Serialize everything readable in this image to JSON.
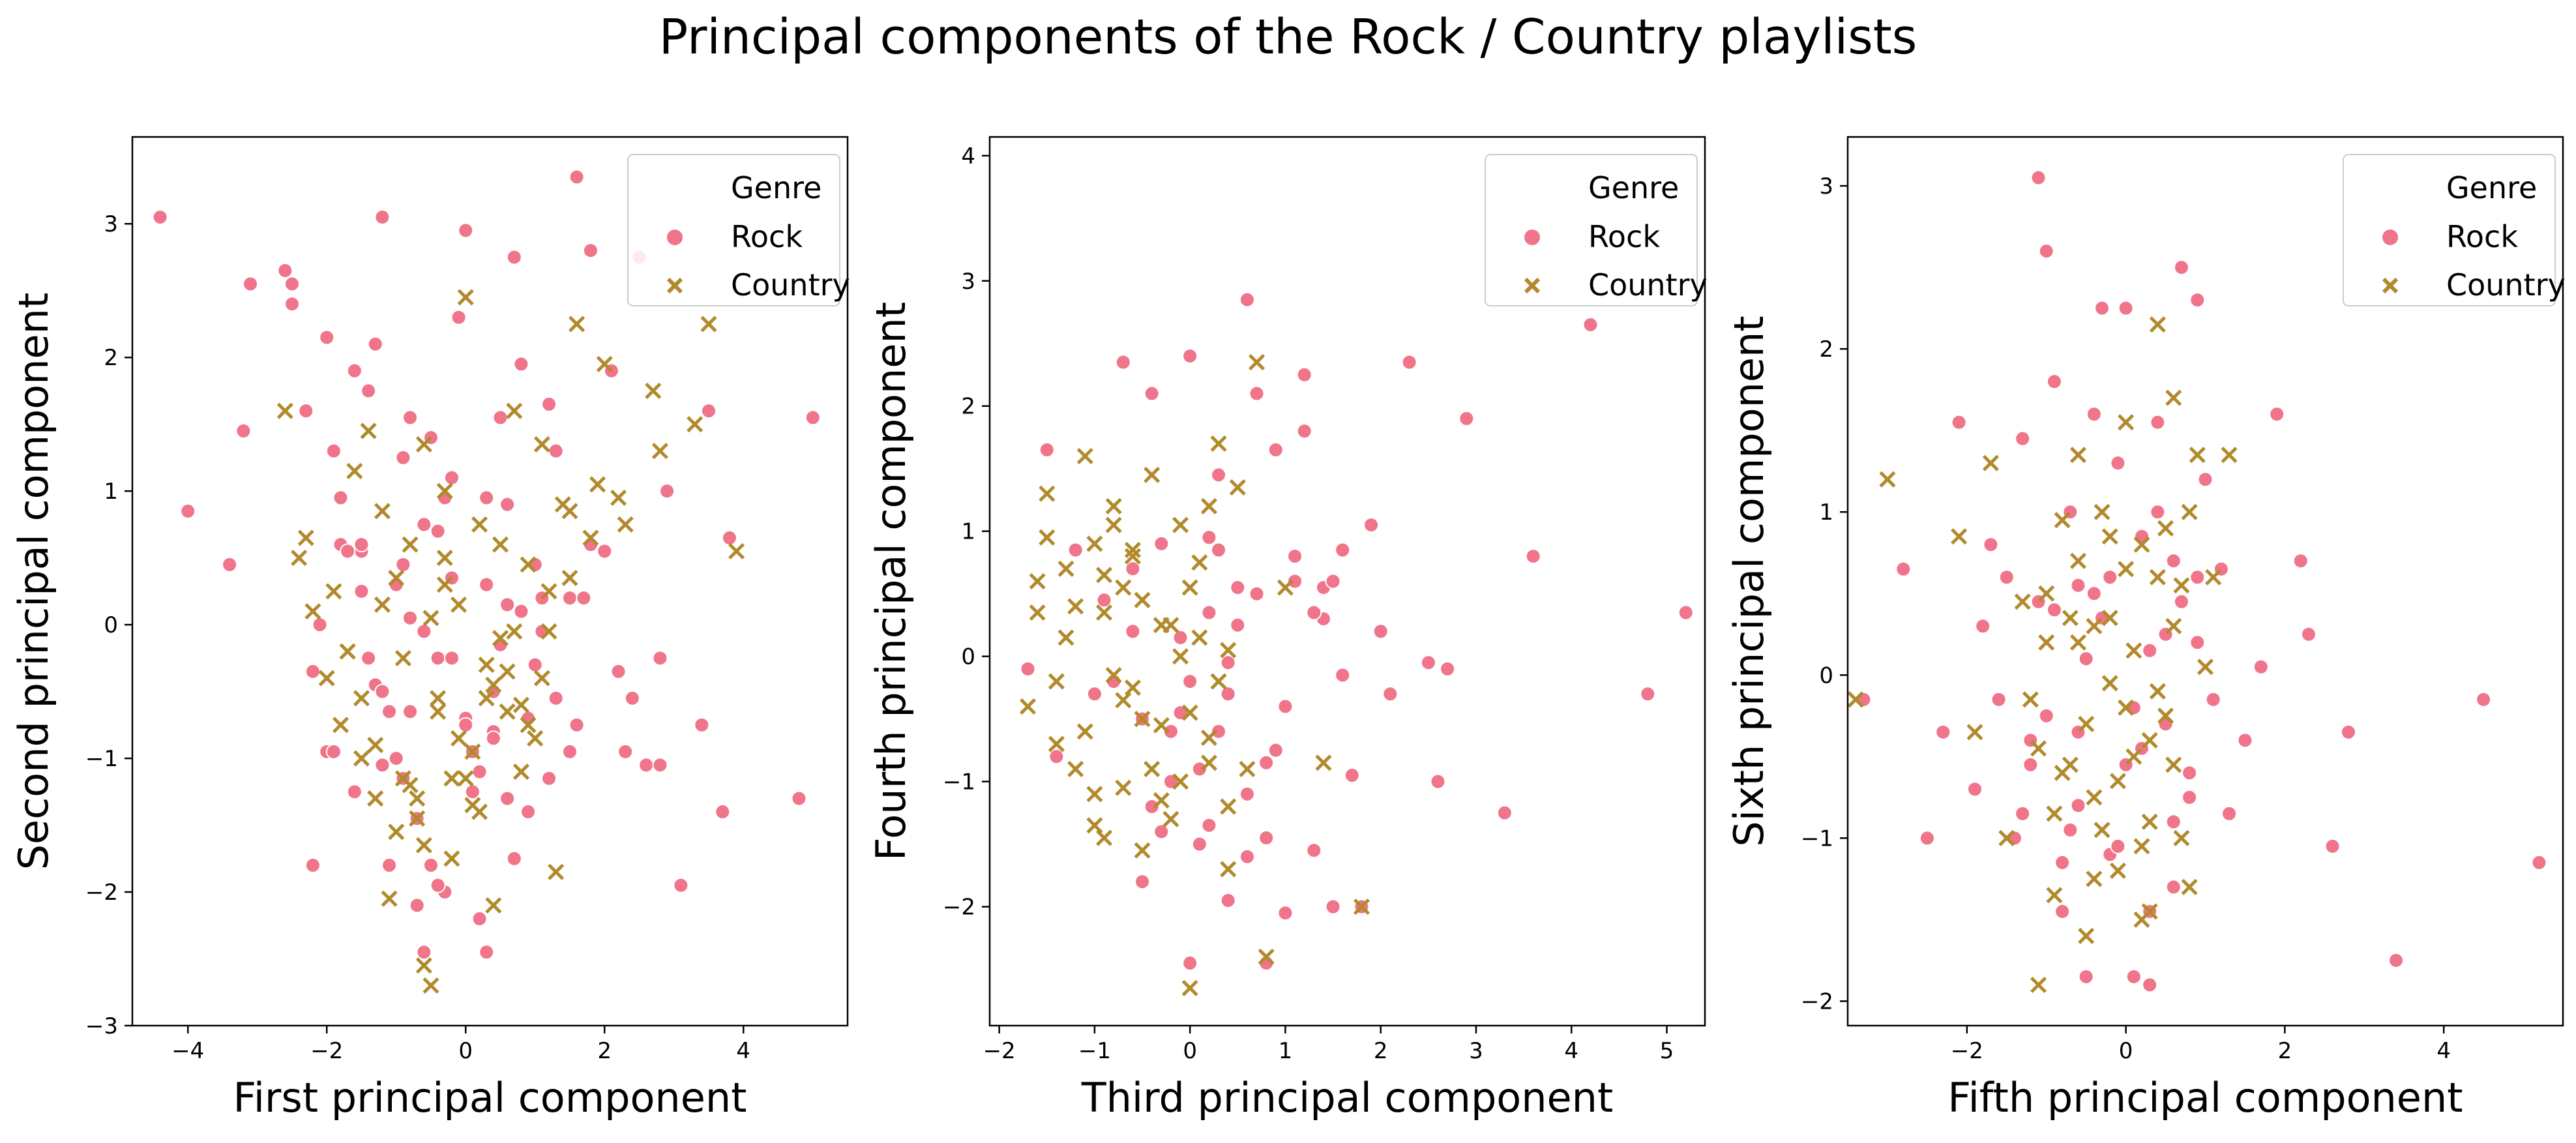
{
  "figure": {
    "title": "Principal components of the Rock / Country playlists"
  },
  "legend": {
    "title": "Genre",
    "items": [
      {
        "label": "Rock",
        "marker": "circle",
        "color": "#F0748A"
      },
      {
        "label": "Country",
        "marker": "x",
        "color": "#B18A2C"
      }
    ],
    "placement": "upper-right"
  },
  "chart_data": [
    {
      "type": "scatter",
      "xlabel": "First principal component",
      "ylabel": "Second principal component",
      "xlim": [
        -4.8,
        5.5
      ],
      "ylim": [
        -3.0,
        3.65
      ],
      "xticks": [
        -4,
        -2,
        0,
        2,
        4
      ],
      "yticks": [
        -3,
        -2,
        -1,
        0,
        1,
        2,
        3
      ],
      "grid": false,
      "series": [
        {
          "name": "Rock",
          "marker": "circle",
          "color": "#F0748A",
          "x": [
            -4.4,
            -4.0,
            -3.4,
            -3.2,
            -3.1,
            -2.6,
            -2.5,
            -2.5,
            -2.3,
            -2.2,
            -2.1,
            -2.0,
            -1.9,
            -1.8,
            -1.6,
            -1.5,
            -1.4,
            -1.3,
            -1.2,
            -1.1,
            -1.0,
            -0.9,
            -0.8,
            -0.7,
            -0.6,
            -0.5,
            -0.4,
            -0.3,
            -0.2,
            -0.1,
            0.0,
            0.1,
            0.2,
            0.3,
            0.4,
            0.5,
            0.6,
            0.7,
            0.8,
            0.9,
            1.0,
            1.1,
            1.2,
            1.3,
            1.5,
            1.6,
            1.8,
            2.0,
            2.1,
            2.3,
            2.5,
            2.8,
            3.1,
            3.4,
            3.5,
            3.7,
            3.8,
            4.8,
            5.0,
            -1.8,
            -1.5,
            -1.3,
            -0.9,
            -0.6,
            -0.4,
            -0.2,
            0.1,
            0.3,
            0.6,
            0.9,
            1.3,
            1.7,
            2.2,
            2.6,
            -2.0,
            -1.7,
            -1.4,
            -1.0,
            -0.7,
            -0.3,
            0.0,
            0.4,
            0.8,
            1.2,
            1.8,
            2.4,
            -2.2,
            -1.6,
            -1.2,
            -0.8,
            -0.5,
            0.2,
            0.5,
            1.0,
            1.5,
            -1.1,
            -0.6,
            0.0,
            0.6,
            -0.4,
            0.3,
            2.8,
            1.6,
            -1.9,
            -1.2,
            -0.9,
            -0.2,
            0.7,
            1.1,
            -1.5,
            -0.8,
            0.4,
            2.9
          ],
          "y": [
            3.05,
            0.85,
            0.45,
            1.45,
            2.55,
            2.65,
            2.4,
            2.55,
            1.6,
            -1.8,
            0.0,
            2.15,
            1.3,
            0.6,
            1.9,
            0.55,
            1.75,
            2.1,
            3.05,
            -1.8,
            -1.0,
            1.25,
            1.55,
            -2.1,
            -2.45,
            1.4,
            0.7,
            -2.0,
            1.1,
            2.3,
            2.95,
            -1.25,
            -2.2,
            0.3,
            -0.8,
            1.55,
            0.9,
            2.75,
            1.95,
            -1.4,
            -0.3,
            -0.05,
            1.65,
            1.3,
            0.2,
            3.35,
            2.8,
            0.55,
            1.9,
            -0.95,
            2.75,
            -0.25,
            -1.95,
            -0.75,
            1.6,
            -1.4,
            0.65,
            -1.3,
            1.55,
            0.95,
            0.25,
            -0.45,
            0.45,
            0.75,
            -0.25,
            0.35,
            -0.95,
            0.95,
            0.15,
            -0.7,
            -0.55,
            0.2,
            -0.35,
            -1.05,
            -0.95,
            0.55,
            -0.25,
            0.3,
            -1.45,
            0.95,
            -0.7,
            -0.5,
            0.1,
            -1.15,
            0.6,
            -0.55,
            -0.35,
            -1.25,
            -1.05,
            -0.65,
            -1.8,
            -1.1,
            -0.15,
            0.45,
            -0.95,
            -0.65,
            -0.05,
            -0.75,
            -1.3,
            -1.95,
            -2.45,
            -1.05,
            -0.75,
            -0.95,
            -0.5,
            -1.15,
            -0.25,
            -1.75,
            0.2,
            0.6,
            0.05,
            -0.85,
            1.0
          ]
        },
        {
          "name": "Country",
          "marker": "x",
          "color": "#B18A2C",
          "x": [
            -2.6,
            -2.4,
            -2.3,
            -2.2,
            -2.0,
            -1.9,
            -1.8,
            -1.7,
            -1.6,
            -1.5,
            -1.4,
            -1.3,
            -1.2,
            -1.1,
            -1.0,
            -0.9,
            -0.8,
            -0.7,
            -0.6,
            -0.5,
            -0.4,
            -0.3,
            -0.2,
            -0.1,
            0.0,
            0.1,
            0.2,
            0.3,
            0.4,
            0.5,
            0.6,
            0.7,
            0.8,
            0.9,
            1.0,
            1.1,
            1.2,
            1.3,
            1.4,
            1.5,
            1.6,
            1.8,
            2.0,
            2.2,
            2.3,
            2.7,
            2.8,
            3.3,
            3.5,
            3.9,
            -1.5,
            -1.2,
            -0.9,
            -0.6,
            -0.3,
            0.0,
            0.3,
            0.6,
            0.9,
            1.2,
            -1.0,
            -0.7,
            -0.4,
            -0.1,
            0.2,
            0.5,
            0.8,
            -1.3,
            -0.8,
            -0.5,
            0.1,
            0.4,
            1.5,
            1.9,
            -0.6,
            -0.2,
            0.7,
            1.1,
            -1.7,
            -0.3
          ],
          "y": [
            1.6,
            0.5,
            0.65,
            0.1,
            -0.4,
            0.25,
            -0.75,
            -0.2,
            1.15,
            -1.0,
            1.45,
            -1.3,
            0.85,
            -2.05,
            0.35,
            -1.15,
            0.6,
            -1.45,
            1.35,
            -2.7,
            -0.55,
            1.0,
            -1.75,
            0.15,
            2.45,
            -0.95,
            0.75,
            -0.3,
            -2.1,
            0.6,
            -0.65,
            1.6,
            -1.1,
            0.45,
            -0.85,
            1.35,
            0.25,
            -1.85,
            0.9,
            0.35,
            2.25,
            0.65,
            1.95,
            0.95,
            0.75,
            1.75,
            1.3,
            1.5,
            2.25,
            0.55,
            -0.55,
            0.15,
            -0.25,
            -1.65,
            0.5,
            -1.15,
            -0.55,
            -0.35,
            -0.75,
            -0.05,
            -1.55,
            -1.3,
            -0.65,
            -0.85,
            -1.4,
            -0.1,
            -0.6,
            -0.9,
            -1.2,
            0.05,
            -1.35,
            -0.45,
            0.85,
            1.05,
            -2.55,
            -1.15,
            -0.05,
            -0.4,
            -0.2,
            0.3
          ]
        }
      ]
    },
    {
      "type": "scatter",
      "xlabel": "Third principal component",
      "ylabel": "Fourth principal component",
      "xlim": [
        -2.1,
        5.4
      ],
      "ylim": [
        -2.95,
        4.15
      ],
      "xticks": [
        -2,
        -1,
        0,
        1,
        2,
        3,
        4,
        5
      ],
      "yticks": [
        -2,
        -1,
        0,
        1,
        2,
        3,
        4
      ],
      "grid": false,
      "series": [
        {
          "name": "Rock",
          "marker": "circle",
          "color": "#F0748A",
          "x": [
            -1.7,
            -1.5,
            -1.4,
            -1.2,
            -1.0,
            -0.9,
            -0.7,
            -0.6,
            -0.5,
            -0.4,
            -0.3,
            -0.2,
            -0.1,
            0.0,
            0.1,
            0.2,
            0.3,
            0.4,
            0.5,
            0.6,
            0.7,
            0.8,
            0.9,
            1.0,
            1.1,
            1.2,
            1.3,
            1.4,
            1.5,
            1.6,
            1.7,
            1.8,
            1.9,
            2.0,
            2.1,
            2.3,
            2.5,
            2.6,
            2.7,
            2.9,
            3.3,
            3.6,
            4.2,
            4.8,
            5.2,
            -0.3,
            0.0,
            0.6,
            1.2,
            -0.5,
            0.2,
            0.8,
            1.4,
            -0.8,
            0.4,
            1.0,
            1.6,
            0.1,
            0.7,
            -0.2,
            0.5,
            1.1,
            0.3,
            0.9,
            -0.6,
            0.6,
            1.3,
            0.0,
            -0.4,
            0.2,
            0.8,
            0.4,
            -0.1,
            1.5,
            0.3
          ],
          "y": [
            -0.1,
            1.65,
            -0.8,
            0.85,
            -0.3,
            0.45,
            2.35,
            0.2,
            -1.8,
            2.1,
            0.9,
            -0.6,
            0.15,
            2.4,
            -0.9,
            -1.35,
            1.45,
            -1.95,
            0.55,
            -1.1,
            2.1,
            -1.45,
            1.65,
            -2.05,
            0.6,
            2.25,
            -1.55,
            0.3,
            -2.0,
            0.85,
            -0.95,
            -2.0,
            1.05,
            0.2,
            -0.3,
            2.35,
            -0.05,
            -1.0,
            -0.1,
            1.9,
            -1.25,
            0.8,
            2.65,
            -0.3,
            0.35,
            -1.4,
            -2.45,
            2.85,
            1.8,
            -0.5,
            0.95,
            -0.85,
            0.55,
            -0.2,
            -0.3,
            -0.4,
            -0.15,
            -1.5,
            0.5,
            -1.0,
            0.25,
            0.8,
            -0.6,
            -0.75,
            0.7,
            -1.6,
            0.35,
            -0.2,
            -1.2,
            0.35,
            -2.45,
            -0.05,
            -0.45,
            0.6,
            0.85
          ]
        },
        {
          "name": "Country",
          "marker": "x",
          "color": "#B18A2C",
          "x": [
            -1.7,
            -1.6,
            -1.5,
            -1.4,
            -1.3,
            -1.2,
            -1.1,
            -1.0,
            -0.9,
            -0.8,
            -0.7,
            -0.6,
            -0.5,
            -0.4,
            -0.3,
            -0.2,
            -0.1,
            0.0,
            0.1,
            0.2,
            0.3,
            0.4,
            0.5,
            0.6,
            0.7,
            0.8,
            1.0,
            1.4,
            1.8,
            -1.6,
            -1.3,
            -1.1,
            -0.9,
            -0.7,
            -0.5,
            -0.3,
            -0.1,
            0.1,
            0.3,
            -1.4,
            -1.2,
            -1.0,
            -0.8,
            -0.6,
            -0.4,
            -0.2,
            0.0,
            0.2,
            -1.5,
            -0.9,
            -0.7,
            -0.3,
            0.4,
            -1.0,
            -0.5,
            -0.1,
            0.2,
            -0.8,
            -0.6,
            0.0,
            0.4
          ],
          "y": [
            -0.4,
            0.6,
            1.3,
            -0.2,
            0.7,
            -0.9,
            1.6,
            -1.35,
            0.35,
            1.2,
            -1.05,
            0.85,
            -1.55,
            1.45,
            0.25,
            -1.3,
            1.05,
            -2.65,
            0.15,
            -0.85,
            1.7,
            -1.7,
            1.35,
            -0.9,
            2.35,
            -2.4,
            0.55,
            -0.85,
            -2.0,
            0.35,
            0.15,
            -0.6,
            0.65,
            -0.35,
            0.45,
            -0.55,
            0.0,
            0.75,
            -0.2,
            -0.7,
            0.4,
            -1.1,
            -0.15,
            0.8,
            -0.9,
            0.25,
            -0.45,
            1.2,
            0.95,
            -1.45,
            0.55,
            -1.15,
            0.05,
            0.9,
            -0.5,
            -1.0,
            -0.65,
            1.05,
            -0.25,
            0.55,
            -1.2
          ]
        }
      ]
    },
    {
      "type": "scatter",
      "xlabel": "Fifth principal component",
      "ylabel": "Sixth principal component",
      "xlim": [
        -3.5,
        5.5
      ],
      "ylim": [
        -2.15,
        3.3
      ],
      "xticks": [
        -2,
        0,
        2,
        4
      ],
      "yticks": [
        -2,
        -1,
        0,
        1,
        2,
        3
      ],
      "grid": false,
      "series": [
        {
          "name": "Rock",
          "marker": "circle",
          "color": "#F0748A",
          "x": [
            -3.3,
            -2.8,
            -2.5,
            -2.3,
            -2.1,
            -1.9,
            -1.7,
            -1.5,
            -1.4,
            -1.3,
            -1.2,
            -1.1,
            -1.0,
            -0.9,
            -0.8,
            -0.7,
            -0.6,
            -0.5,
            -0.4,
            -0.3,
            -0.2,
            -0.1,
            0.0,
            0.1,
            0.2,
            0.3,
            0.4,
            0.5,
            0.6,
            0.7,
            0.8,
            0.9,
            1.0,
            1.1,
            1.3,
            1.5,
            1.7,
            1.9,
            2.2,
            2.3,
            2.6,
            2.8,
            3.4,
            4.5,
            5.2,
            -1.8,
            -1.6,
            -1.2,
            -0.9,
            -0.6,
            -0.3,
            0.0,
            0.3,
            0.6,
            0.9,
            -1.0,
            -0.7,
            -0.4,
            0.2,
            0.5,
            0.8,
            -1.3,
            -0.5,
            0.1,
            0.4,
            0.7,
            -0.8,
            -0.2,
            0.3,
            1.2,
            -1.1,
            0.6,
            -0.6,
            0.9,
            -0.1
          ],
          "y": [
            -0.15,
            0.65,
            -1.0,
            -0.35,
            1.55,
            -0.7,
            0.8,
            0.6,
            -1.0,
            1.45,
            -0.4,
            3.05,
            2.6,
            1.8,
            -1.45,
            1.0,
            0.55,
            -1.85,
            1.6,
            2.25,
            -1.1,
            1.3,
            2.25,
            -1.85,
            0.85,
            -1.9,
            1.55,
            -0.3,
            0.7,
            2.5,
            -0.6,
            2.3,
            1.2,
            -0.15,
            -0.85,
            -0.4,
            0.05,
            1.6,
            0.7,
            0.25,
            -1.05,
            -0.35,
            -1.75,
            -0.15,
            -1.15,
            0.3,
            -0.15,
            -0.55,
            0.4,
            -0.8,
            0.35,
            -0.55,
            0.15,
            -1.3,
            0.6,
            -0.25,
            -0.95,
            0.5,
            -0.45,
            0.25,
            -0.75,
            -0.85,
            0.1,
            -0.2,
            1.0,
            0.45,
            -1.15,
            0.6,
            -1.45,
            0.65,
            0.45,
            -0.9,
            -0.35,
            0.2,
            -1.05
          ]
        },
        {
          "name": "Country",
          "marker": "x",
          "color": "#B18A2C",
          "x": [
            -3.4,
            -3.0,
            -2.1,
            -1.9,
            -1.7,
            -1.5,
            -1.3,
            -1.1,
            -1.0,
            -0.9,
            -0.8,
            -0.7,
            -0.6,
            -0.5,
            -0.4,
            -0.3,
            -0.2,
            -0.1,
            0.0,
            0.1,
            0.2,
            0.3,
            0.4,
            0.5,
            0.6,
            0.7,
            0.8,
            0.9,
            1.0,
            1.1,
            1.3,
            -1.2,
            -1.0,
            -0.8,
            -0.6,
            -0.4,
            -0.2,
            0.0,
            0.2,
            0.4,
            0.6,
            -0.9,
            -0.7,
            -0.5,
            -0.3,
            -0.1,
            0.1,
            0.3,
            0.5,
            0.7,
            -1.1,
            -0.4,
            0.0,
            0.4,
            0.8,
            -0.6,
            0.2,
            0.6,
            -0.2,
            0.3
          ],
          "y": [
            -0.15,
            1.2,
            0.85,
            -0.35,
            1.3,
            -1.0,
            0.45,
            -1.9,
            0.2,
            -1.35,
            0.95,
            -0.55,
            1.35,
            -1.6,
            0.3,
            -0.95,
            0.85,
            -1.2,
            1.55,
            -0.5,
            0.8,
            -1.45,
            2.15,
            -0.25,
            1.7,
            0.55,
            -1.3,
            1.35,
            0.05,
            0.6,
            1.35,
            -0.15,
            0.5,
            -0.6,
            0.2,
            -0.75,
            0.35,
            -0.2,
            -1.05,
            0.6,
            -0.55,
            -0.85,
            0.35,
            -0.3,
            1.0,
            -0.65,
            0.15,
            -0.4,
            0.9,
            -1.0,
            -0.45,
            -1.25,
            0.65,
            -0.1,
            1.0,
            0.7,
            -1.5,
            0.3,
            -0.05,
            -0.9
          ]
        }
      ]
    }
  ]
}
